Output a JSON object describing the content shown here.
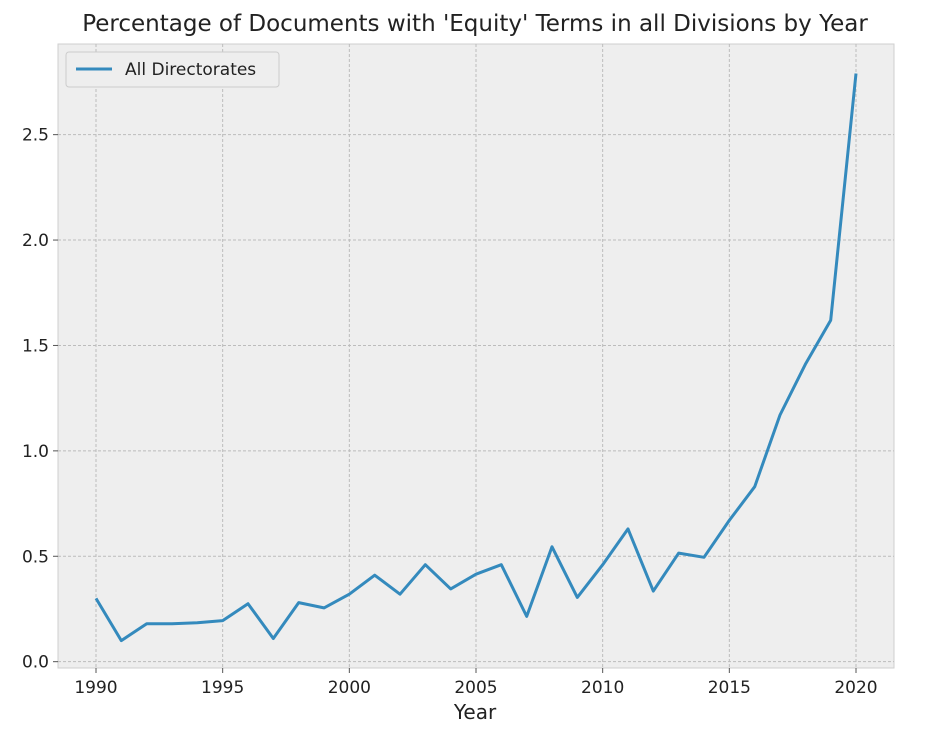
{
  "chart_data": {
    "type": "line",
    "title": "Percentage of Documents with 'Equity' Terms in all Divisions by Year",
    "xlabel": "Year",
    "ylabel": "",
    "x": [
      1990,
      1991,
      1992,
      1993,
      1994,
      1995,
      1996,
      1997,
      1998,
      1999,
      2000,
      2001,
      2002,
      2003,
      2004,
      2005,
      2006,
      2007,
      2008,
      2009,
      2010,
      2011,
      2012,
      2013,
      2014,
      2015,
      2016,
      2017,
      2018,
      2019,
      2020
    ],
    "series": [
      {
        "name": "All Directorates",
        "color": "#348abd",
        "values": [
          0.3,
          0.1,
          0.18,
          0.18,
          0.185,
          0.195,
          0.275,
          0.11,
          0.28,
          0.255,
          0.32,
          0.41,
          0.32,
          0.46,
          0.345,
          0.415,
          0.46,
          0.215,
          0.545,
          0.305,
          0.46,
          0.63,
          0.335,
          0.515,
          0.495,
          0.67,
          0.83,
          1.17,
          1.41,
          1.62,
          2.79
        ]
      }
    ],
    "xlim": [
      1988.5,
      2021.5
    ],
    "ylim": [
      -0.03,
      2.93
    ],
    "xticks": [
      1990,
      1995,
      2000,
      2005,
      2010,
      2015,
      2020
    ],
    "xtick_labels": [
      "1990",
      "1995",
      "2000",
      "2005",
      "2010",
      "2015",
      "2020"
    ],
    "yticks": [
      0.0,
      0.5,
      1.0,
      1.5,
      2.0,
      2.5
    ],
    "ytick_labels": [
      "0.0",
      "0.5",
      "1.0",
      "1.5",
      "2.0",
      "2.5"
    ],
    "grid": true,
    "legend_position": "top-left",
    "background_color": "#eeeeee",
    "grid_color": "#bcbcbc"
  }
}
